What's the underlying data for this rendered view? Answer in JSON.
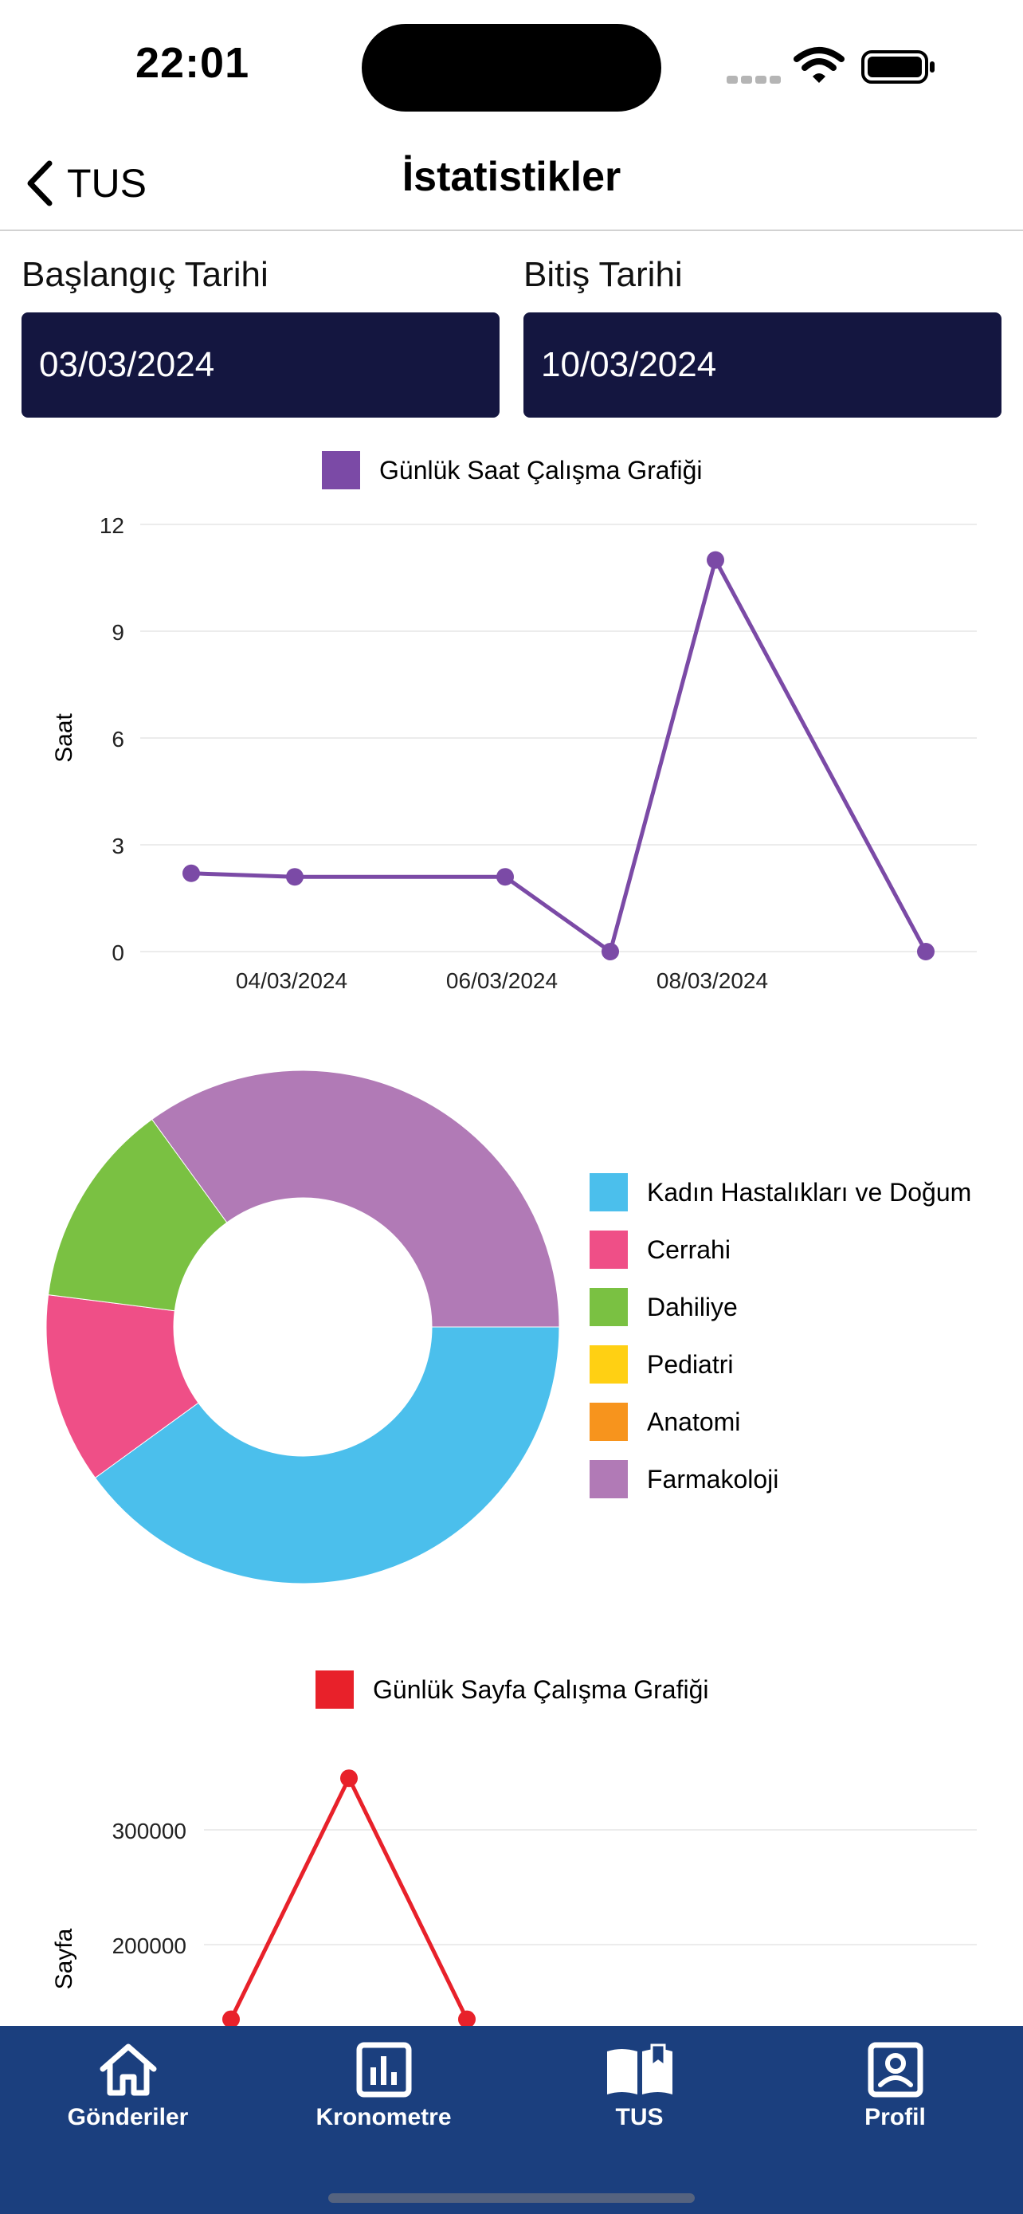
{
  "status_bar": {
    "time": "22:01"
  },
  "nav": {
    "back_label": "TUS",
    "title": "İstatistikler"
  },
  "dates": {
    "start_label": "Başlangıç Tarihi",
    "start_value": "03/03/2024",
    "end_label": "Bitiş Tarihi",
    "end_value": "10/03/2024"
  },
  "chart_data": [
    {
      "type": "line",
      "title": "",
      "legend": "Günlük Saat Çalışma Grafiği",
      "color": "#7b4aa6",
      "ylabel": "Saat",
      "xlabel": "",
      "ylim": [
        0,
        12
      ],
      "yticks": [
        "0",
        "3",
        "6",
        "9",
        "12"
      ],
      "xticks": [
        "04/03/2024",
        "06/03/2024",
        "08/03/2024"
      ],
      "x": [
        "03/03/2024",
        "04/03/2024",
        "06/03/2024",
        "07/03/2024",
        "08/03/2024",
        "10/03/2024"
      ],
      "values": [
        2.2,
        2.1,
        2.1,
        0,
        11,
        0
      ],
      "grid": true,
      "legend_position": "top"
    },
    {
      "type": "pie",
      "title": "",
      "labels": [
        "Kadın Hastalıkları ve Doğum",
        "Cerrahi",
        "Dahiliye",
        "Pediatri",
        "Anatomi",
        "Farmakoloji"
      ],
      "values": [
        40,
        12,
        13,
        0,
        0,
        35
      ],
      "colors": [
        "#4bbfec",
        "#ef4f87",
        "#7ac142",
        "#ffd013",
        "#f7941d",
        "#b17ab6"
      ],
      "legend_position": "right"
    },
    {
      "type": "line",
      "title": "",
      "legend": "Günlük Sayfa Çalışma Grafiği",
      "color": "#e8212a",
      "ylabel": "Sayfa",
      "xlabel": "",
      "yticks": [
        "200000",
        "300000"
      ],
      "x": [
        "1",
        "2",
        "3"
      ],
      "values": [
        135000,
        345000,
        135000
      ],
      "grid": true,
      "legend_position": "top"
    }
  ],
  "tabbar": {
    "tabs": [
      {
        "label": "Gönderiler",
        "icon": "home-icon"
      },
      {
        "label": "Kronometre",
        "icon": "bar-chart-icon"
      },
      {
        "label": "TUS",
        "icon": "book-icon"
      },
      {
        "label": "Profil",
        "icon": "profile-icon"
      }
    ]
  }
}
